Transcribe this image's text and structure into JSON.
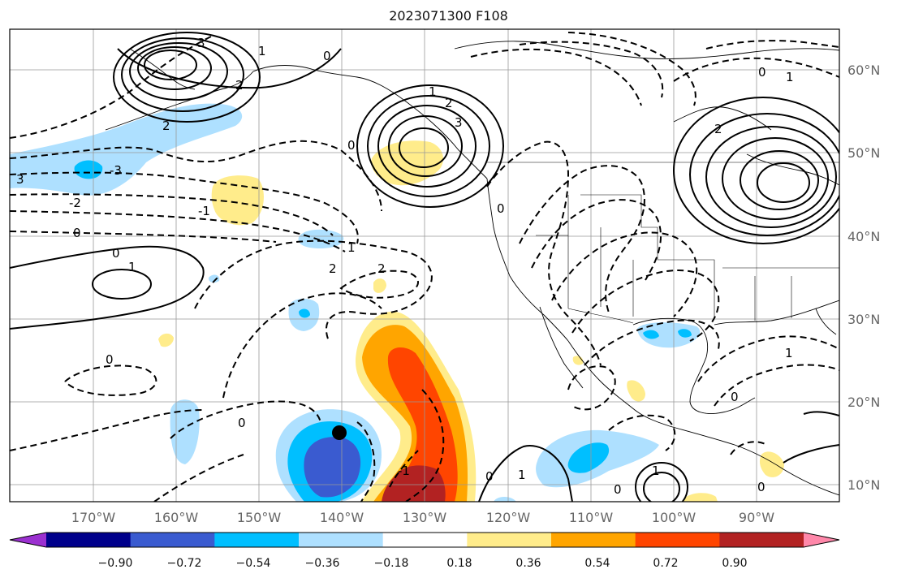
{
  "title": "2023071300 F108",
  "map": {
    "lat_labels": [
      "60°N",
      "50°N",
      "40°N",
      "30°N",
      "20°N",
      "10°N"
    ],
    "lon_labels": [
      "170°W",
      "160°W",
      "150°W",
      "140°W",
      "130°W",
      "120°W",
      "110°W",
      "100°W",
      "90°W"
    ],
    "grid": true,
    "marker": {
      "lon": -139.8,
      "lat": 16.4
    },
    "contour_labels": [
      "3",
      "2",
      "1",
      "0",
      "1",
      "2",
      "3",
      "0",
      "2",
      "3",
      "0",
      "1",
      "2",
      "-1",
      "-2",
      "-3",
      "0",
      "1",
      "0",
      "2",
      "2",
      "1",
      "0",
      "0",
      "-1",
      "1",
      "0",
      "0",
      "1",
      "0",
      "1",
      "0",
      "0"
    ]
  },
  "colorbar": {
    "ticks": [
      "−0.90",
      "−0.72",
      "−0.54",
      "−0.36",
      "−0.18",
      "0.18",
      "0.36",
      "0.54",
      "0.72",
      "0.90"
    ],
    "colors": [
      "#9b30d0",
      "#00008b",
      "#3a5bd0",
      "#00bfff",
      "#aee0ff",
      "#ffffff",
      "#ffec8b",
      "#ffa500",
      "#ff4500",
      "#b22222",
      "#ff88aa"
    ]
  }
}
